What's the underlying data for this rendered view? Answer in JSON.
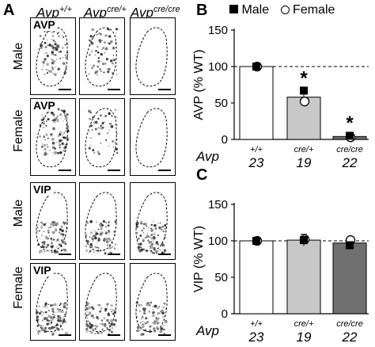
{
  "panel_a": {
    "letter": "A",
    "genotypes": [
      {
        "base": "Avp",
        "sup": "+/+"
      },
      {
        "base": "Avp",
        "sup": "cre/+"
      },
      {
        "base": "Avp",
        "sup": "cre/cre"
      }
    ],
    "rows": [
      {
        "sex": "Male",
        "marker": "AVP",
        "density": [
          0.55,
          0.5,
          0.0
        ]
      },
      {
        "sex": "Female",
        "marker": "AVP",
        "density": [
          0.65,
          0.35,
          0.0
        ]
      },
      {
        "sex": "Male",
        "marker": "VIP",
        "density": [
          0.6,
          0.55,
          0.55
        ]
      },
      {
        "sex": "Female",
        "marker": "VIP",
        "density": [
          0.7,
          0.6,
          0.6
        ]
      }
    ]
  },
  "panel_b": {
    "letter": "B",
    "legend": {
      "male": "Male",
      "female": "Female"
    }
  },
  "panel_c": {
    "letter": "C"
  },
  "chart_data": [
    {
      "type": "bar",
      "panel": "B",
      "ylabel": "AVP (% WT)",
      "ylim": [
        0,
        150
      ],
      "yticks": [
        0,
        50,
        100,
        150
      ],
      "reference_line": 100,
      "x_row_label": "Avp",
      "categories": [
        "+/+",
        "cre/+",
        "cre/cre"
      ],
      "n": [
        "23",
        "19",
        "22"
      ],
      "values": [
        100,
        58,
        4
      ],
      "errors": [
        3,
        8,
        1.5
      ],
      "male": [
        100,
        67,
        5
      ],
      "female": [
        100,
        52,
        3
      ],
      "significance": [
        "",
        "*",
        "*"
      ],
      "bar_colors": [
        "#ffffff",
        "#c8c8c8",
        "#707070"
      ]
    },
    {
      "type": "bar",
      "panel": "C",
      "ylabel": "VIP (% WT)",
      "ylim": [
        0,
        150
      ],
      "yticks": [
        0,
        50,
        100,
        150
      ],
      "reference_line": 100,
      "x_row_label": "Avp",
      "categories": [
        "+/+",
        "cre/+",
        "cre/cre"
      ],
      "n": [
        "23",
        "19",
        "22"
      ],
      "values": [
        100,
        101,
        97
      ],
      "errors": [
        3,
        8,
        6
      ],
      "male": [
        100,
        101,
        94
      ],
      "female": [
        100,
        102,
        101
      ],
      "significance": [
        "",
        "",
        ""
      ],
      "bar_colors": [
        "#ffffff",
        "#c8c8c8",
        "#707070"
      ]
    }
  ]
}
